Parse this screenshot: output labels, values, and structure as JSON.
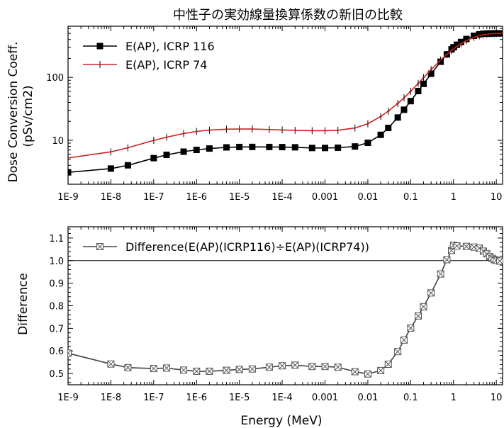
{
  "chart_data": [
    {
      "type": "line",
      "title": "中性子の実効線量換算係数の新旧の比較",
      "xlabel": "",
      "ylabel": "Dose Conversion Coeff.",
      "ylabel2": "(pSv/cm2)",
      "xscale": "log",
      "yscale": "log",
      "xlim": [
        1e-09,
        14
      ],
      "ylim": [
        2,
        650
      ],
      "x_tick_values": [
        1e-09,
        1e-08,
        1e-07,
        1e-06,
        1e-05,
        0.0001,
        0.001,
        0.01,
        0.1,
        1,
        10
      ],
      "x_tick_labels": [
        "1E-9",
        "1E-8",
        "1E-7",
        "1E-6",
        "1E-5",
        "1E-4",
        "0.001",
        "0.01",
        "0.1",
        "1",
        "10"
      ],
      "y_tick_values": [
        10,
        100
      ],
      "y_tick_labels": [
        "10",
        "100"
      ],
      "legend_position": "top-left",
      "series": [
        {
          "name": "E(AP), ICRP 116",
          "color": "#000000",
          "marker": "filled-square",
          "x": [
            1e-09,
            1e-08,
            2.5e-08,
            1e-07,
            2e-07,
            5e-07,
            1e-06,
            2e-06,
            5e-06,
            1e-05,
            2e-05,
            5e-05,
            0.0001,
            0.0002,
            0.0005,
            0.001,
            0.002,
            0.005,
            0.01,
            0.02,
            0.03,
            0.05,
            0.07,
            0.1,
            0.15,
            0.2,
            0.3,
            0.5,
            0.7,
            0.9,
            1,
            1.2,
            1.5,
            2,
            3,
            4,
            5,
            6,
            7,
            8,
            9,
            10,
            12,
            14
          ],
          "y": [
            3.09,
            3.55,
            4.0,
            5.2,
            5.87,
            6.59,
            7.03,
            7.39,
            7.71,
            7.82,
            7.84,
            7.82,
            7.79,
            7.73,
            7.54,
            7.54,
            7.61,
            7.97,
            9.11,
            12.2,
            15.7,
            23.0,
            30.6,
            41.9,
            60.6,
            78.8,
            114,
            177,
            232,
            279,
            301,
            330,
            365,
            407,
            458,
            483,
            494,
            498,
            499,
            499,
            500,
            500,
            500,
            500
          ]
        },
        {
          "name": "E(AP), ICRP 74",
          "color": "#cc2222",
          "marker": "plus",
          "x": [
            1e-09,
            1e-08,
            2.5e-08,
            1e-07,
            2e-07,
            5e-07,
            1e-06,
            2e-06,
            5e-06,
            1e-05,
            2e-05,
            5e-05,
            0.0001,
            0.0002,
            0.0005,
            0.001,
            0.002,
            0.005,
            0.01,
            0.02,
            0.03,
            0.05,
            0.07,
            0.1,
            0.15,
            0.2,
            0.3,
            0.5,
            0.7,
            0.9,
            1,
            1.2,
            1.5,
            2,
            3,
            4,
            5,
            6,
            7,
            8,
            9,
            10,
            12,
            14
          ],
          "y": [
            5.24,
            6.55,
            7.6,
            9.95,
            11.2,
            12.8,
            13.8,
            14.5,
            15.0,
            15.1,
            15.1,
            14.8,
            14.6,
            14.4,
            14.2,
            14.2,
            14.4,
            15.7,
            18.3,
            23.8,
            29.0,
            38.5,
            47.2,
            59.8,
            80.2,
            99.0,
            133,
            188,
            231,
            267,
            282,
            310,
            343,
            383,
            432,
            458,
            474,
            483,
            490,
            494,
            497,
            499,
            499,
            500
          ]
        }
      ]
    },
    {
      "type": "line",
      "title": "",
      "xlabel": "Energy (MeV)",
      "ylabel": "Difference",
      "xscale": "log",
      "xlim": [
        1e-09,
        14
      ],
      "ylim": [
        0.45,
        1.15
      ],
      "x_tick_values": [
        1e-09,
        1e-08,
        1e-07,
        1e-06,
        1e-05,
        0.0001,
        0.001,
        0.01,
        0.1,
        1,
        10
      ],
      "x_tick_labels": [
        "1E-9",
        "1E-8",
        "1E-7",
        "1E-6",
        "1E-5",
        "1E-4",
        "0.001",
        "0.01",
        "0.1",
        "1",
        "10"
      ],
      "y_tick_values": [
        0.5,
        0.6,
        0.7,
        0.8,
        0.9,
        1.0,
        1.1
      ],
      "y_tick_labels": [
        "0.5",
        "0.6",
        "0.7",
        "0.8",
        "0.9",
        "1.0",
        "1.1"
      ],
      "reference_line": 1.0,
      "legend_position": "top-left",
      "series": [
        {
          "name": "Difference(E(AP)(ICRP116)÷E(AP)(ICRP74))",
          "color": "#444444",
          "marker": "crossed-square",
          "x": [
            1e-09,
            1e-08,
            2.5e-08,
            1e-07,
            2e-07,
            5e-07,
            1e-06,
            2e-06,
            5e-06,
            1e-05,
            2e-05,
            5e-05,
            0.0001,
            0.0002,
            0.0005,
            0.001,
            0.002,
            0.005,
            0.01,
            0.02,
            0.03,
            0.05,
            0.07,
            0.1,
            0.15,
            0.2,
            0.3,
            0.5,
            0.7,
            0.9,
            1,
            1.2,
            2,
            3,
            4,
            5,
            6,
            7,
            8,
            9,
            10,
            12
          ],
          "y": [
            0.59,
            0.542,
            0.526,
            0.522,
            0.524,
            0.515,
            0.51,
            0.51,
            0.514,
            0.518,
            0.52,
            0.528,
            0.534,
            0.537,
            0.531,
            0.531,
            0.528,
            0.508,
            0.498,
            0.513,
            0.541,
            0.597,
            0.648,
            0.701,
            0.755,
            0.796,
            0.857,
            0.941,
            1.004,
            1.045,
            1.068,
            1.065,
            1.063,
            1.06,
            1.055,
            1.042,
            1.03,
            1.018,
            1.01,
            1.004,
            1.001,
            0.998
          ]
        }
      ]
    }
  ]
}
